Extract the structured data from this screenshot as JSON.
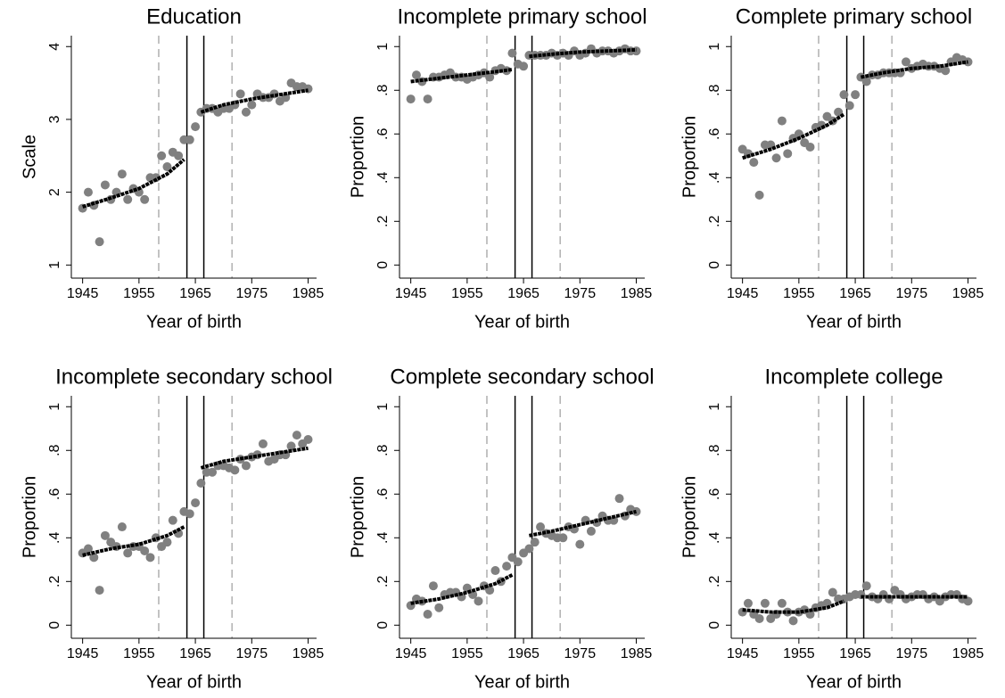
{
  "charts": [
    {
      "chart_data": {
        "type": "scatter",
        "title": "Education",
        "xlabel": "Year of birth",
        "ylabel": "Scale",
        "xlim": [
          1943,
          1986.5
        ],
        "xticks": [
          1945,
          1955,
          1965,
          1975,
          1985
        ],
        "ylim": [
          0.82,
          4.15
        ],
        "yticks": [
          1,
          2,
          3,
          4
        ],
        "x": [
          1945,
          1946,
          1947,
          1948,
          1949,
          1950,
          1951,
          1952,
          1953,
          1954,
          1955,
          1956,
          1957,
          1958,
          1959,
          1960,
          1961,
          1962,
          1963,
          1964,
          1965,
          1966,
          1967,
          1968,
          1969,
          1970,
          1971,
          1972,
          1973,
          1974,
          1975,
          1976,
          1977,
          1978,
          1979,
          1980,
          1981,
          1982,
          1983,
          1984,
          1985
        ],
        "points": {
          "color": "#808080",
          "values": [
            1.78,
            2.0,
            1.82,
            1.32,
            2.1,
            1.9,
            2.0,
            2.25,
            1.9,
            2.05,
            2.0,
            1.9,
            2.2,
            2.2,
            2.5,
            2.35,
            2.55,
            2.5,
            2.72,
            2.72,
            2.9,
            3.1,
            3.15,
            3.15,
            3.1,
            3.15,
            3.15,
            3.2,
            3.35,
            3.1,
            3.2,
            3.35,
            3.3,
            3.3,
            3.35,
            3.25,
            3.3,
            3.5,
            3.45,
            3.45,
            3.42
          ]
        },
        "fits": [
          {
            "x": [
              1945,
              1950,
              1955,
              1960,
              1963
            ],
            "values": [
              1.8,
              1.92,
              2.05,
              2.25,
              2.45
            ]
          },
          {
            "x": [
              1966,
              1970,
              1975,
              1980,
              1985
            ],
            "values": [
              3.1,
              3.2,
              3.28,
              3.34,
              3.4
            ]
          }
        ],
        "fit_color": "#000000",
        "vlines": [
          {
            "x": 1958.5,
            "style": "dashed"
          },
          {
            "x": 1963.5,
            "style": "solid"
          },
          {
            "x": 1966.5,
            "style": "solid"
          },
          {
            "x": 1971.5,
            "style": "dashed"
          }
        ]
      }
    },
    {
      "chart_data": {
        "type": "scatter",
        "title": "Incomplete primary school",
        "xlabel": "Year of birth",
        "ylabel": "Proportion",
        "xlim": [
          1943,
          1986.5
        ],
        "xticks": [
          1945,
          1955,
          1965,
          1975,
          1985
        ],
        "ylim": [
          -0.06,
          1.05
        ],
        "yticks": [
          0,
          {
            "value": 0.2,
            "label": ".2"
          },
          {
            "value": 0.4,
            "label": ".4"
          },
          {
            "value": 0.6,
            "label": ".6"
          },
          {
            "value": 0.8,
            "label": ".8"
          },
          1
        ],
        "x": [
          1945,
          1946,
          1947,
          1948,
          1949,
          1950,
          1951,
          1952,
          1953,
          1954,
          1955,
          1956,
          1957,
          1958,
          1959,
          1960,
          1961,
          1962,
          1963,
          1964,
          1965,
          1966,
          1967,
          1968,
          1969,
          1970,
          1971,
          1972,
          1973,
          1974,
          1975,
          1976,
          1977,
          1978,
          1979,
          1980,
          1981,
          1982,
          1983,
          1984,
          1985
        ],
        "points": {
          "color": "#808080",
          "values": [
            0.76,
            0.87,
            0.84,
            0.76,
            0.86,
            0.86,
            0.87,
            0.88,
            0.86,
            0.86,
            0.85,
            0.86,
            0.87,
            0.88,
            0.86,
            0.89,
            0.9,
            0.89,
            0.97,
            0.92,
            0.91,
            0.96,
            0.96,
            0.96,
            0.96,
            0.97,
            0.96,
            0.97,
            0.96,
            0.98,
            0.96,
            0.97,
            0.99,
            0.97,
            0.98,
            0.98,
            0.97,
            0.98,
            0.99,
            0.98,
            0.98
          ]
        },
        "fits": [
          {
            "x": [
              1945,
              1950,
              1955,
              1960,
              1963
            ],
            "values": [
              0.84,
              0.855,
              0.87,
              0.885,
              0.895
            ]
          },
          {
            "x": [
              1966,
              1970,
              1975,
              1980,
              1985
            ],
            "values": [
              0.955,
              0.965,
              0.975,
              0.98,
              0.985
            ]
          }
        ],
        "fit_color": "#000000",
        "vlines": [
          {
            "x": 1958.5,
            "style": "dashed"
          },
          {
            "x": 1963.5,
            "style": "solid"
          },
          {
            "x": 1966.5,
            "style": "solid"
          },
          {
            "x": 1971.5,
            "style": "dashed"
          }
        ]
      }
    },
    {
      "chart_data": {
        "type": "scatter",
        "title": "Complete primary school",
        "xlabel": "Year of birth",
        "ylabel": "Proportion",
        "xlim": [
          1943,
          1986.5
        ],
        "xticks": [
          1945,
          1955,
          1965,
          1975,
          1985
        ],
        "ylim": [
          -0.06,
          1.05
        ],
        "yticks": [
          0,
          {
            "value": 0.2,
            "label": ".2"
          },
          {
            "value": 0.4,
            "label": ".4"
          },
          {
            "value": 0.6,
            "label": ".6"
          },
          {
            "value": 0.8,
            "label": ".8"
          },
          1
        ],
        "x": [
          1945,
          1946,
          1947,
          1948,
          1949,
          1950,
          1951,
          1952,
          1953,
          1954,
          1955,
          1956,
          1957,
          1958,
          1959,
          1960,
          1961,
          1962,
          1963,
          1964,
          1965,
          1966,
          1967,
          1968,
          1969,
          1970,
          1971,
          1972,
          1973,
          1974,
          1975,
          1976,
          1977,
          1978,
          1979,
          1980,
          1981,
          1982,
          1983,
          1984,
          1985
        ],
        "points": {
          "color": "#808080",
          "values": [
            0.53,
            0.51,
            0.47,
            0.32,
            0.55,
            0.55,
            0.49,
            0.66,
            0.51,
            0.58,
            0.6,
            0.56,
            0.54,
            0.63,
            0.64,
            0.68,
            0.66,
            0.7,
            0.78,
            0.73,
            0.78,
            0.86,
            0.84,
            0.87,
            0.87,
            0.88,
            0.88,
            0.88,
            0.88,
            0.93,
            0.9,
            0.91,
            0.92,
            0.91,
            0.91,
            0.9,
            0.89,
            0.93,
            0.95,
            0.94,
            0.93
          ]
        },
        "fits": [
          {
            "x": [
              1945,
              1950,
              1955,
              1960,
              1963
            ],
            "values": [
              0.49,
              0.53,
              0.58,
              0.64,
              0.69
            ]
          },
          {
            "x": [
              1966,
              1970,
              1975,
              1980,
              1985
            ],
            "values": [
              0.86,
              0.88,
              0.9,
              0.91,
              0.93
            ]
          }
        ],
        "fit_color": "#000000",
        "vlines": [
          {
            "x": 1958.5,
            "style": "dashed"
          },
          {
            "x": 1963.5,
            "style": "solid"
          },
          {
            "x": 1966.5,
            "style": "solid"
          },
          {
            "x": 1971.5,
            "style": "dashed"
          }
        ]
      }
    },
    {
      "chart_data": {
        "type": "scatter",
        "title": "Incomplete secondary school",
        "xlabel": "Year of birth",
        "ylabel": "Proportion",
        "xlim": [
          1943,
          1986.5
        ],
        "xticks": [
          1945,
          1955,
          1965,
          1975,
          1985
        ],
        "ylim": [
          -0.06,
          1.05
        ],
        "yticks": [
          0,
          {
            "value": 0.2,
            "label": ".2"
          },
          {
            "value": 0.4,
            "label": ".4"
          },
          {
            "value": 0.6,
            "label": ".6"
          },
          {
            "value": 0.8,
            "label": ".8"
          },
          1
        ],
        "x": [
          1945,
          1946,
          1947,
          1948,
          1949,
          1950,
          1951,
          1952,
          1953,
          1954,
          1955,
          1956,
          1957,
          1958,
          1959,
          1960,
          1961,
          1962,
          1963,
          1964,
          1965,
          1966,
          1967,
          1968,
          1969,
          1970,
          1971,
          1972,
          1973,
          1974,
          1975,
          1976,
          1977,
          1978,
          1979,
          1980,
          1981,
          1982,
          1983,
          1984,
          1985
        ],
        "points": {
          "color": "#808080",
          "values": [
            0.33,
            0.35,
            0.31,
            0.16,
            0.41,
            0.38,
            0.36,
            0.45,
            0.33,
            0.36,
            0.36,
            0.34,
            0.31,
            0.4,
            0.36,
            0.38,
            0.48,
            0.42,
            0.52,
            0.51,
            0.56,
            0.65,
            0.7,
            0.7,
            0.73,
            0.73,
            0.72,
            0.71,
            0.76,
            0.73,
            0.77,
            0.78,
            0.83,
            0.75,
            0.76,
            0.78,
            0.78,
            0.82,
            0.87,
            0.83,
            0.85
          ]
        },
        "fits": [
          {
            "x": [
              1945,
              1950,
              1955,
              1960,
              1963
            ],
            "values": [
              0.32,
              0.35,
              0.37,
              0.41,
              0.45
            ]
          },
          {
            "x": [
              1966,
              1970,
              1975,
              1980,
              1985
            ],
            "values": [
              0.72,
              0.75,
              0.77,
              0.79,
              0.81
            ]
          }
        ],
        "fit_color": "#000000",
        "vlines": [
          {
            "x": 1958.5,
            "style": "dashed"
          },
          {
            "x": 1963.5,
            "style": "solid"
          },
          {
            "x": 1966.5,
            "style": "solid"
          },
          {
            "x": 1971.5,
            "style": "dashed"
          }
        ]
      }
    },
    {
      "chart_data": {
        "type": "scatter",
        "title": "Complete secondary school",
        "xlabel": "Year of birth",
        "ylabel": "Proportion",
        "xlim": [
          1943,
          1986.5
        ],
        "xticks": [
          1945,
          1955,
          1965,
          1975,
          1985
        ],
        "ylim": [
          -0.06,
          1.05
        ],
        "yticks": [
          0,
          {
            "value": 0.2,
            "label": ".2"
          },
          {
            "value": 0.4,
            "label": ".4"
          },
          {
            "value": 0.6,
            "label": ".6"
          },
          {
            "value": 0.8,
            "label": ".8"
          },
          1
        ],
        "x": [
          1945,
          1946,
          1947,
          1948,
          1949,
          1950,
          1951,
          1952,
          1953,
          1954,
          1955,
          1956,
          1957,
          1958,
          1959,
          1960,
          1961,
          1962,
          1963,
          1964,
          1965,
          1966,
          1967,
          1968,
          1969,
          1970,
          1971,
          1972,
          1973,
          1974,
          1975,
          1976,
          1977,
          1978,
          1979,
          1980,
          1981,
          1982,
          1983,
          1984,
          1985
        ],
        "points": {
          "color": "#808080",
          "values": [
            0.09,
            0.12,
            0.11,
            0.05,
            0.18,
            0.08,
            0.14,
            0.15,
            0.15,
            0.13,
            0.17,
            0.14,
            0.11,
            0.18,
            0.16,
            0.25,
            0.2,
            0.27,
            0.31,
            0.29,
            0.33,
            0.35,
            0.38,
            0.45,
            0.42,
            0.41,
            0.4,
            0.4,
            0.45,
            0.44,
            0.37,
            0.48,
            0.43,
            0.47,
            0.5,
            0.48,
            0.48,
            0.58,
            0.5,
            0.53,
            0.52
          ]
        },
        "fits": [
          {
            "x": [
              1945,
              1950,
              1955,
              1960,
              1963
            ],
            "values": [
              0.1,
              0.12,
              0.15,
              0.19,
              0.23
            ]
          },
          {
            "x": [
              1966,
              1970,
              1975,
              1980,
              1985
            ],
            "values": [
              0.41,
              0.43,
              0.46,
              0.49,
              0.52
            ]
          }
        ],
        "fit_color": "#000000",
        "vlines": [
          {
            "x": 1958.5,
            "style": "dashed"
          },
          {
            "x": 1963.5,
            "style": "solid"
          },
          {
            "x": 1966.5,
            "style": "solid"
          },
          {
            "x": 1971.5,
            "style": "dashed"
          }
        ]
      }
    },
    {
      "chart_data": {
        "type": "scatter",
        "title": "Incomplete college",
        "xlabel": "Year of birth",
        "ylabel": "Proportion",
        "xlim": [
          1943,
          1986.5
        ],
        "xticks": [
          1945,
          1955,
          1965,
          1975,
          1985
        ],
        "ylim": [
          -0.06,
          1.05
        ],
        "yticks": [
          0,
          {
            "value": 0.2,
            "label": ".2"
          },
          {
            "value": 0.4,
            "label": ".4"
          },
          {
            "value": 0.6,
            "label": ".6"
          },
          {
            "value": 0.8,
            "label": ".8"
          },
          1
        ],
        "x": [
          1945,
          1946,
          1947,
          1948,
          1949,
          1950,
          1951,
          1952,
          1953,
          1954,
          1955,
          1956,
          1957,
          1958,
          1959,
          1960,
          1961,
          1962,
          1963,
          1964,
          1965,
          1966,
          1967,
          1968,
          1969,
          1970,
          1971,
          1972,
          1973,
          1974,
          1975,
          1976,
          1977,
          1978,
          1979,
          1980,
          1981,
          1982,
          1983,
          1984,
          1985
        ],
        "points": {
          "color": "#808080",
          "values": [
            0.06,
            0.1,
            0.05,
            0.03,
            0.1,
            0.03,
            0.05,
            0.1,
            0.06,
            0.02,
            0.06,
            0.07,
            0.05,
            0.08,
            0.09,
            0.1,
            0.15,
            0.12,
            0.12,
            0.13,
            0.14,
            0.14,
            0.18,
            0.13,
            0.12,
            0.14,
            0.12,
            0.16,
            0.14,
            0.12,
            0.13,
            0.14,
            0.14,
            0.12,
            0.13,
            0.11,
            0.13,
            0.14,
            0.14,
            0.12,
            0.11
          ]
        },
        "fits": [
          {
            "x": [
              1945,
              1950,
              1955,
              1960,
              1963
            ],
            "values": [
              0.07,
              0.06,
              0.06,
              0.08,
              0.11
            ]
          },
          {
            "x": [
              1966,
              1970,
              1975,
              1980,
              1985
            ],
            "values": [
              0.13,
              0.13,
              0.13,
              0.13,
              0.13
            ]
          }
        ],
        "fit_color": "#000000",
        "vlines": [
          {
            "x": 1958.5,
            "style": "dashed"
          },
          {
            "x": 1963.5,
            "style": "solid"
          },
          {
            "x": 1966.5,
            "style": "solid"
          },
          {
            "x": 1971.5,
            "style": "dashed"
          }
        ]
      }
    }
  ]
}
